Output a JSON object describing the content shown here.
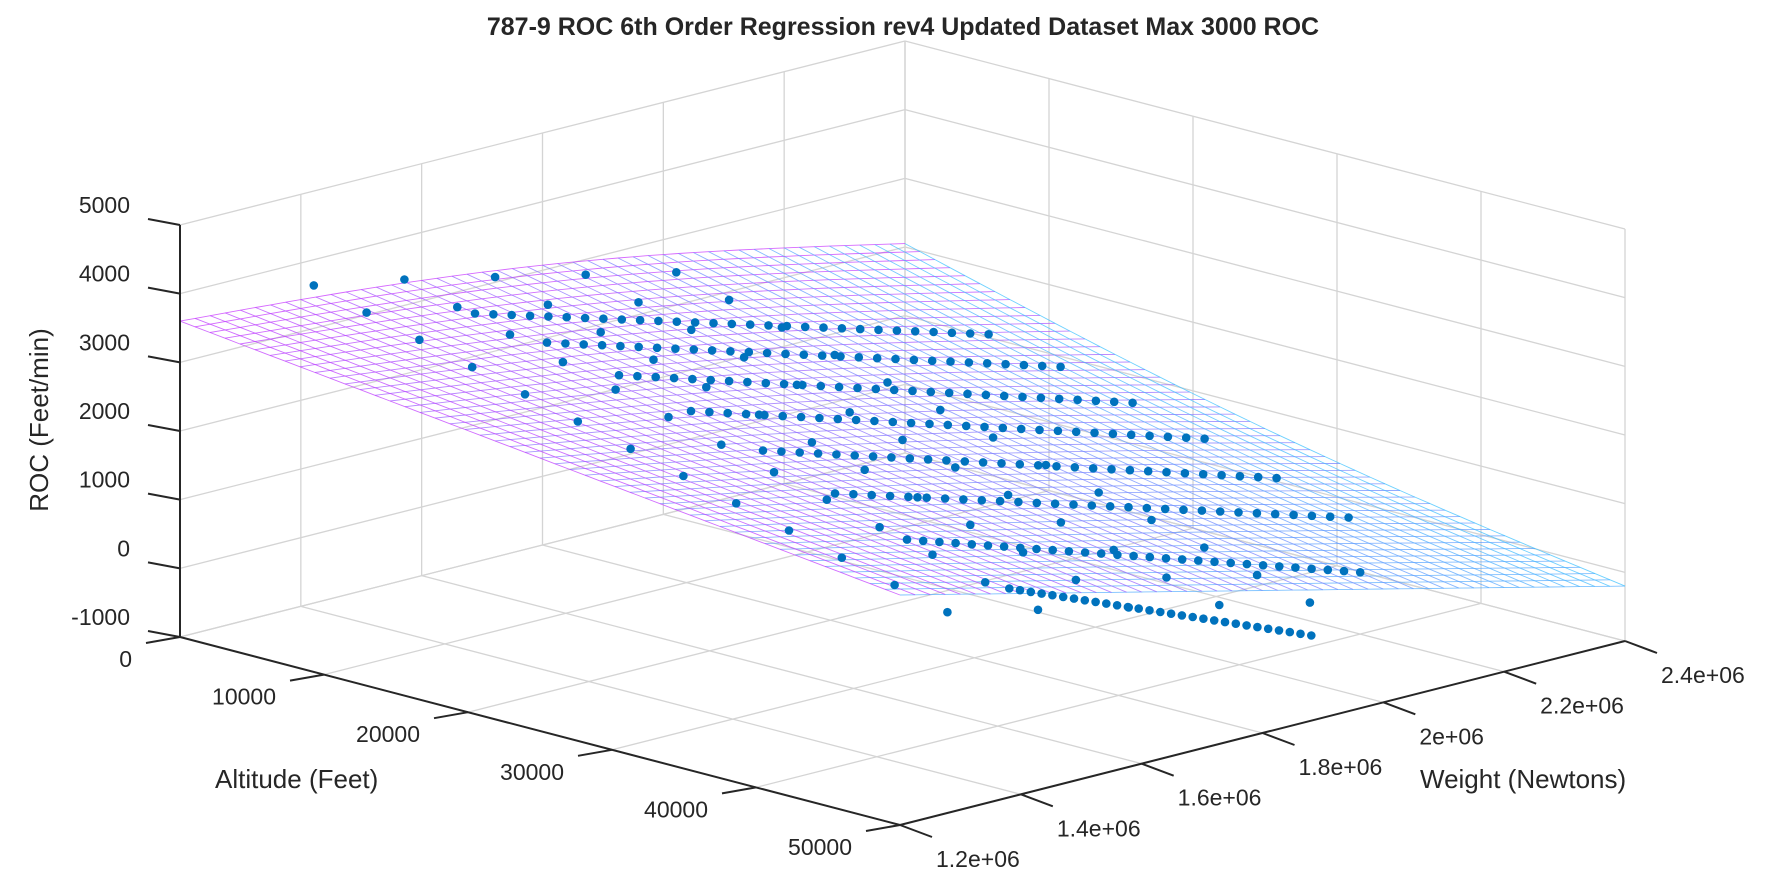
{
  "chart_data": {
    "type": "surface",
    "title": "787-9 ROC 6th Order Regression rev4 Updated Dataset Max 3000 ROC",
    "xlabel": "Weight (Newtons)",
    "ylabel": "Altitude (Feet)",
    "zlabel": "ROC (Feet/min)",
    "xlim": [
      1200000,
      2400000
    ],
    "ylim": [
      0,
      50000
    ],
    "zlim": [
      -1000,
      5000
    ],
    "x_ticks": [
      "1.2e+06",
      "1.4e+06",
      "1.6e+06",
      "1.8e+06",
      "2e+06",
      "2.2e+06",
      "2.4e+06"
    ],
    "y_ticks": [
      "0",
      "10000",
      "20000",
      "30000",
      "40000",
      "50000"
    ],
    "z_ticks": [
      "-1000",
      "0",
      "1000",
      "2000",
      "3000",
      "4000",
      "5000"
    ],
    "grid": true,
    "colormap": [
      "#ff00ff",
      "#00ffff"
    ],
    "marker_color": "#0072bd",
    "surface": {
      "x_range": [
        1200000,
        2400000
      ],
      "y_range": [
        0,
        50000
      ],
      "corner_values": {
        "low_weight_low_alt": 3600,
        "high_weight_low_alt": 2050,
        "low_weight_high_alt": 2350,
        "high_weight_high_alt": -200
      }
    },
    "scatter_lines": [
      {
        "altitude": 10000,
        "w_start": 1450000,
        "w_end": 2300000,
        "z_start": 3700,
        "z_end": 1500
      },
      {
        "altitude": 15000,
        "w_start": 1450000,
        "w_end": 2300000,
        "z_start": 3550,
        "z_end": 1300
      },
      {
        "altitude": 20000,
        "w_start": 1450000,
        "w_end": 2300000,
        "z_start": 3350,
        "z_end": 1050
      },
      {
        "altitude": 25000,
        "w_start": 1450000,
        "w_end": 2300000,
        "z_start": 3100,
        "z_end": 800
      },
      {
        "altitude": 30000,
        "w_start": 1450000,
        "w_end": 2300000,
        "z_start": 2800,
        "z_end": 500
      },
      {
        "altitude": 35000,
        "w_start": 1450000,
        "w_end": 2300000,
        "z_start": 2450,
        "z_end": 200
      },
      {
        "altitude": 40000,
        "w_start": 1450000,
        "w_end": 2200000,
        "z_start": 2050,
        "z_end": -100
      },
      {
        "altitude": 45000,
        "w_start": 1500000,
        "w_end": 2000000,
        "z_start": 1500,
        "z_end": -300
      }
    ],
    "scatter_columns": [
      {
        "weight": 1350000,
        "alt_start": 3000,
        "alt_end": 47000,
        "z_start": 3950,
        "z_end": 1600
      },
      {
        "weight": 1500000,
        "alt_start": 3000,
        "alt_end": 47000,
        "z_start": 3700,
        "z_end": 1300
      },
      {
        "weight": 1650000,
        "alt_start": 3000,
        "alt_end": 47000,
        "z_start": 3400,
        "z_end": 1000
      },
      {
        "weight": 1800000,
        "alt_start": 3000,
        "alt_end": 47000,
        "z_start": 3100,
        "z_end": 700
      },
      {
        "weight": 1950000,
        "alt_start": 3000,
        "alt_end": 47000,
        "z_start": 2800,
        "z_end": 400
      }
    ]
  }
}
